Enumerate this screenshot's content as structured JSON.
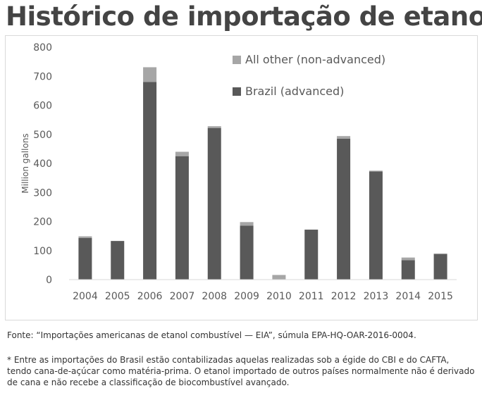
{
  "header": {
    "title": "Histórico de importação de etanol"
  },
  "footer": {
    "source": "Fonte: “Importações americanas de etanol combustível — EIA”, súmula EPA-HQ-OAR-2016-0004.",
    "note": "* Entre as importações do Brasil estão contabilizadas aquelas realizadas sob a égide do CBI e do CAFTA, tendo cana-de-açúcar como matéria-prima. O etanol importado de outros países normalmente não é derivado de cana e não recebe a classificação de biocombustível avançado."
  },
  "chart_data": {
    "type": "bar",
    "stacked": true,
    "categories": [
      "2004",
      "2005",
      "2006",
      "2007",
      "2008",
      "2009",
      "2010",
      "2011",
      "2012",
      "2013",
      "2014",
      "2015"
    ],
    "series": [
      {
        "name": "Brazil (advanced)",
        "color": "#595959",
        "values": [
          143,
          133,
          680,
          425,
          522,
          186,
          0,
          172,
          485,
          372,
          67,
          88
        ]
      },
      {
        "name": "All other (non-advanced)",
        "color": "#a6a6a6",
        "values": [
          6,
          0,
          51,
          15,
          6,
          12,
          16,
          0,
          9,
          3,
          9,
          2
        ]
      }
    ],
    "ylabel": "Million gallons",
    "ylim": [
      0,
      800
    ],
    "yticks": [
      "0",
      "100",
      "200",
      "300",
      "400",
      "500",
      "600",
      "700",
      "800"
    ],
    "grid": false,
    "legend": "top-right"
  }
}
